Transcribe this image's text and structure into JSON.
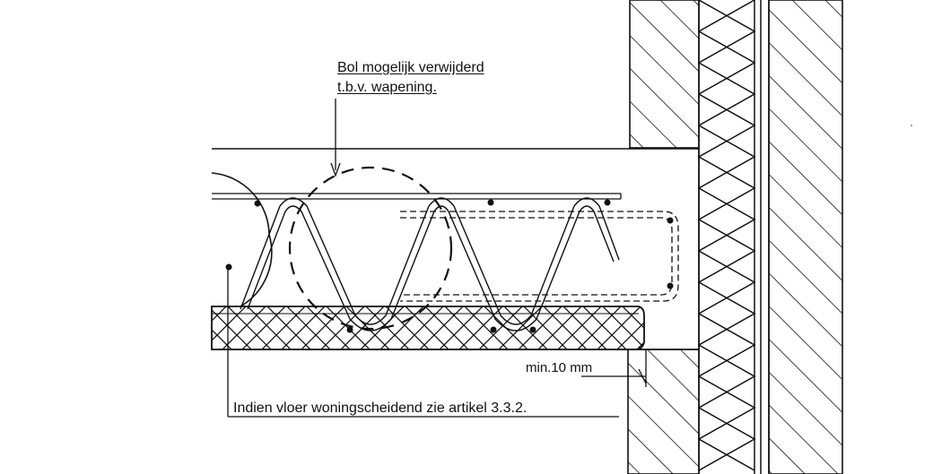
{
  "annotations": {
    "bol_line1": "Bol mogelijk verwijderd",
    "bol_line2": "t.b.v. wapening.",
    "min_gap": "min.10 mm",
    "vloer_note": "Indien vloer woningscheidend zie artikel 3.3.2."
  },
  "colors": {
    "ink": "#111111",
    "paper": "#ffffff"
  }
}
